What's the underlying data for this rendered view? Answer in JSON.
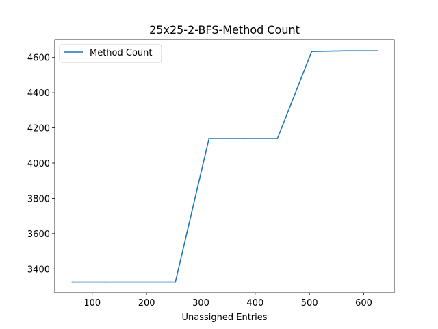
{
  "chart_data": {
    "type": "line",
    "title": "25x25-2-BFS-Method Count",
    "xlabel": "Unassigned Entries",
    "ylabel": "",
    "xlim": [
      31,
      656
    ],
    "ylim": [
      3265,
      4700
    ],
    "xticks": [
      100,
      200,
      300,
      400,
      500,
      600
    ],
    "yticks": [
      3400,
      3600,
      3800,
      4000,
      4200,
      4400,
      4600
    ],
    "grid": false,
    "legend_position": "top-left",
    "series": [
      {
        "name": "Method Count",
        "color": "#1f77b4",
        "x": [
          63,
          125,
          188,
          253,
          315,
          378,
          441,
          504,
          567,
          625
        ],
        "y": [
          3325,
          3325,
          3325,
          3325,
          4140,
          4140,
          4140,
          4633,
          4637,
          4637
        ]
      }
    ]
  }
}
